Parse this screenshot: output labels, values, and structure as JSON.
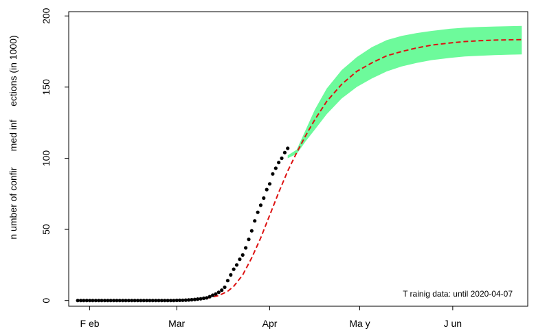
{
  "chart_data": {
    "type": "line",
    "title": "",
    "xlabel": "",
    "ylabel": "n umber of confir      med inf     ections (in 1000)",
    "x_axis": {
      "kind": "date",
      "range": [
        "2020-01-25",
        "2020-06-26"
      ],
      "ticks": [
        {
          "date": "2020-02-01",
          "label": "F eb"
        },
        {
          "date": "2020-03-01",
          "label": "Mar"
        },
        {
          "date": "2020-04-01",
          "label": "Apr"
        },
        {
          "date": "2020-05-01",
          "label": "Ma  y"
        },
        {
          "date": "2020-06-01",
          "label": "J un"
        }
      ]
    },
    "y_axis": {
      "range": [
        -4,
        203
      ],
      "ticks": [
        0,
        50,
        100,
        150,
        200
      ],
      "tick_labels": [
        "0",
        "50",
        "100",
        "150",
        "200"
      ]
    },
    "grid": false,
    "annotation": "T rainig data: until 2020-04-07",
    "observed": {
      "color": "#000000",
      "dates": [
        "2020-01-28",
        "2020-01-29",
        "2020-01-30",
        "2020-01-31",
        "2020-02-01",
        "2020-02-02",
        "2020-02-03",
        "2020-02-04",
        "2020-02-05",
        "2020-02-06",
        "2020-02-07",
        "2020-02-08",
        "2020-02-09",
        "2020-02-10",
        "2020-02-11",
        "2020-02-12",
        "2020-02-13",
        "2020-02-14",
        "2020-02-15",
        "2020-02-16",
        "2020-02-17",
        "2020-02-18",
        "2020-02-19",
        "2020-02-20",
        "2020-02-21",
        "2020-02-22",
        "2020-02-23",
        "2020-02-24",
        "2020-02-25",
        "2020-02-26",
        "2020-02-27",
        "2020-02-28",
        "2020-02-29",
        "2020-03-01",
        "2020-03-02",
        "2020-03-03",
        "2020-03-04",
        "2020-03-05",
        "2020-03-06",
        "2020-03-07",
        "2020-03-08",
        "2020-03-09",
        "2020-03-10",
        "2020-03-11",
        "2020-03-12",
        "2020-03-13",
        "2020-03-14",
        "2020-03-15",
        "2020-03-16",
        "2020-03-17",
        "2020-03-18",
        "2020-03-19",
        "2020-03-20",
        "2020-03-21",
        "2020-03-22",
        "2020-03-23",
        "2020-03-24",
        "2020-03-25",
        "2020-03-26",
        "2020-03-27",
        "2020-03-28",
        "2020-03-29",
        "2020-03-30",
        "2020-03-31",
        "2020-04-01",
        "2020-04-02",
        "2020-04-03",
        "2020-04-04",
        "2020-04-05",
        "2020-04-06",
        "2020-04-07"
      ],
      "values": [
        0,
        0,
        0,
        0,
        0,
        0,
        0,
        0,
        0,
        0,
        0,
        0,
        0,
        0,
        0,
        0,
        0,
        0,
        0,
        0,
        0,
        0,
        0,
        0,
        0,
        0,
        0,
        0,
        0,
        0,
        0,
        0,
        0,
        0.1,
        0.15,
        0.2,
        0.3,
        0.4,
        0.6,
        0.8,
        1.0,
        1.2,
        1.6,
        1.9,
        2.7,
        3.7,
        4.6,
        5.8,
        7.3,
        9.3,
        14,
        18,
        22,
        25,
        29,
        32,
        37,
        43,
        49,
        56,
        62,
        67,
        72,
        78,
        82,
        89,
        93,
        97,
        100,
        104,
        107
      ]
    },
    "fitted": {
      "color": "#dd1111",
      "style": "dashed",
      "x": [
        "2020-01-28",
        "2020-02-15",
        "2020-03-01",
        "2020-03-10",
        "2020-03-15",
        "2020-03-18",
        "2020-03-20",
        "2020-03-23",
        "2020-03-26",
        "2020-03-29",
        "2020-04-01",
        "2020-04-04",
        "2020-04-07",
        "2020-04-10",
        "2020-04-13",
        "2020-04-16",
        "2020-04-20",
        "2020-04-25",
        "2020-04-30",
        "2020-05-05",
        "2020-05-10",
        "2020-05-15",
        "2020-05-20",
        "2020-05-25",
        "2020-05-31",
        "2020-06-05",
        "2020-06-10",
        "2020-06-15",
        "2020-06-20",
        "2020-06-24"
      ],
      "y": [
        0,
        0,
        0.2,
        1.2,
        3.5,
        6.5,
        10,
        18,
        30,
        44,
        60,
        76,
        91,
        104,
        116,
        127,
        140,
        152,
        161,
        167,
        172,
        175,
        177.5,
        179.5,
        181,
        182,
        182.6,
        183,
        183.2,
        183.3
      ]
    },
    "band": {
      "color": "#6dfa9b",
      "x": [
        "2020-04-07",
        "2020-04-10",
        "2020-04-13",
        "2020-04-16",
        "2020-04-20",
        "2020-04-25",
        "2020-04-30",
        "2020-05-05",
        "2020-05-10",
        "2020-05-15",
        "2020-05-20",
        "2020-05-25",
        "2020-05-31",
        "2020-06-05",
        "2020-06-10",
        "2020-06-15",
        "2020-06-20",
        "2020-06-24"
      ],
      "lower": [
        100,
        103,
        112,
        120,
        131,
        142,
        150,
        156,
        161,
        164.5,
        167,
        169,
        170.5,
        171.5,
        172,
        172.5,
        172.8,
        173
      ],
      "upper": [
        102,
        106,
        120,
        134,
        149,
        162,
        171,
        178,
        183,
        186,
        188,
        189.5,
        191,
        191.8,
        192.3,
        192.6,
        192.8,
        193
      ]
    }
  }
}
